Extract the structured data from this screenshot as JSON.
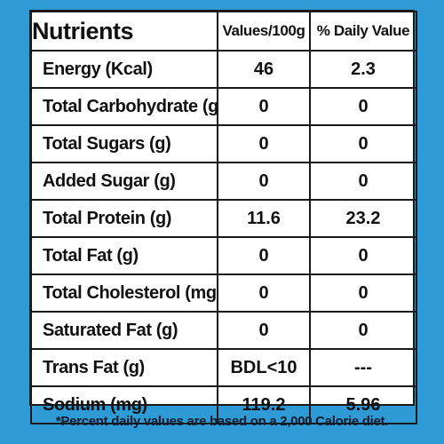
{
  "table": {
    "header": {
      "nutrients": "Nutrients",
      "values": "Values/100g",
      "daily_value": "% Daily Value"
    },
    "rows": [
      {
        "name": "Energy (Kcal)",
        "value": "46",
        "dv": "2.3"
      },
      {
        "name": "Total Carbohydrate (g)",
        "value": "0",
        "dv": "0"
      },
      {
        "name": "Total Sugars (g)",
        "value": "0",
        "dv": "0"
      },
      {
        "name": "Added Sugar (g)",
        "value": "0",
        "dv": "0"
      },
      {
        "name": "Total Protein (g)",
        "value": "11.6",
        "dv": "23.2"
      },
      {
        "name": "Total Fat (g)",
        "value": "0",
        "dv": "0"
      },
      {
        "name": "Total Cholesterol (mg)",
        "value": "0",
        "dv": "0"
      },
      {
        "name": "Saturated Fat (g)",
        "value": "0",
        "dv": "0"
      },
      {
        "name": "Trans Fat (g)",
        "value": "BDL<10",
        "dv": "---"
      },
      {
        "name": "Sodium (mg)",
        "value": "119.2",
        "dv": "5.96"
      }
    ]
  },
  "footnote": "*Percent daily values are based on a 2,000 Calorie diet.",
  "colors": {
    "border_blue": "#2e9ad6",
    "text": "#111111"
  }
}
